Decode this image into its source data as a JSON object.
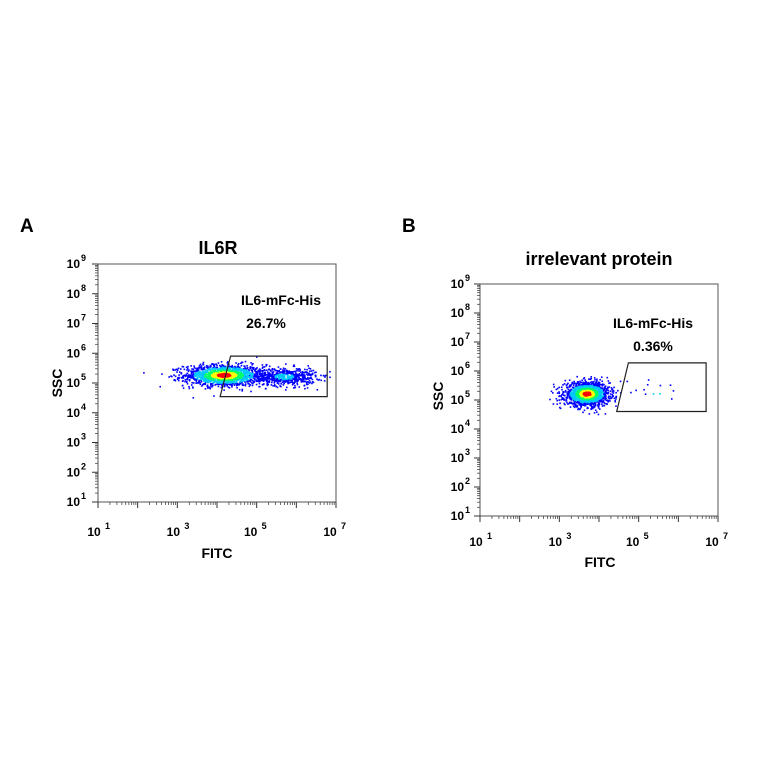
{
  "figure": {
    "panels": [
      "A",
      "B"
    ]
  },
  "chart_data": [
    {
      "type": "scatter",
      "panel": "A",
      "title": "IL6R",
      "xlabel": "FITC",
      "ylabel": "SSC",
      "x_scale": "log",
      "y_scale": "log",
      "xlim": [
        10,
        10000000
      ],
      "ylim": [
        10,
        1000000000
      ],
      "x_ticks": [
        {
          "base": "10",
          "exp": "1",
          "value": 10
        },
        {
          "base": "10",
          "exp": "3",
          "value": 1000
        },
        {
          "base": "10",
          "exp": "5",
          "value": 100000
        },
        {
          "base": "10",
          "exp": "7",
          "value": 10000000
        }
      ],
      "y_ticks": [
        {
          "base": "10",
          "exp": "1",
          "value": 10
        },
        {
          "base": "10",
          "exp": "2",
          "value": 100
        },
        {
          "base": "10",
          "exp": "3",
          "value": 1000
        },
        {
          "base": "10",
          "exp": "4",
          "value": 10000
        },
        {
          "base": "10",
          "exp": "5",
          "value": 100000
        },
        {
          "base": "10",
          "exp": "6",
          "value": 1000000
        },
        {
          "base": "10",
          "exp": "7",
          "value": 10000000
        },
        {
          "base": "10",
          "exp": "8",
          "value": 100000000
        },
        {
          "base": "10",
          "exp": "9",
          "value": 1000000000
        }
      ],
      "gate": {
        "name": "IL6-mFc-His",
        "percent": "26.7%",
        "polygon": [
          [
            22000,
            800000
          ],
          [
            6000000,
            800000
          ],
          [
            6000000,
            35000
          ],
          [
            12000,
            35000
          ]
        ]
      },
      "populations": [
        {
          "center": [
            15000,
            180000
          ],
          "spread": [
            0.5,
            0.18
          ],
          "count": 1400
        },
        {
          "center": [
            500000,
            160000
          ],
          "spread": [
            0.4,
            0.15
          ],
          "count": 600
        }
      ],
      "grid": false,
      "colormap": [
        "#0000ff",
        "#00c8ff",
        "#00ff66",
        "#ffff00",
        "#ff0000"
      ]
    },
    {
      "type": "scatter",
      "panel": "B",
      "title": "irrelevant protein",
      "xlabel": "FITC",
      "ylabel": "SSC",
      "x_scale": "log",
      "y_scale": "log",
      "xlim": [
        10,
        10000000
      ],
      "ylim": [
        10,
        1000000000
      ],
      "x_ticks": [
        {
          "base": "10",
          "exp": "1",
          "value": 10
        },
        {
          "base": "10",
          "exp": "3",
          "value": 1000
        },
        {
          "base": "10",
          "exp": "5",
          "value": 100000
        },
        {
          "base": "10",
          "exp": "7",
          "value": 10000000
        }
      ],
      "y_ticks": [
        {
          "base": "10",
          "exp": "1",
          "value": 10
        },
        {
          "base": "10",
          "exp": "2",
          "value": 100
        },
        {
          "base": "10",
          "exp": "3",
          "value": 1000
        },
        {
          "base": "10",
          "exp": "4",
          "value": 10000
        },
        {
          "base": "10",
          "exp": "5",
          "value": 100000
        },
        {
          "base": "10",
          "exp": "6",
          "value": 1000000
        },
        {
          "base": "10",
          "exp": "7",
          "value": 10000000
        },
        {
          "base": "10",
          "exp": "8",
          "value": 100000000
        },
        {
          "base": "10",
          "exp": "9",
          "value": 1000000000
        }
      ],
      "gate": {
        "name": "IL6-mFc-His",
        "percent": "0.36%",
        "polygon": [
          [
            55000,
            1900000
          ],
          [
            5000000,
            1900000
          ],
          [
            5000000,
            40000
          ],
          [
            28000,
            40000
          ]
        ]
      },
      "populations": [
        {
          "center": [
            5000,
            160000
          ],
          "spread": [
            0.28,
            0.2
          ],
          "count": 1500
        },
        {
          "center": [
            300000,
            200000
          ],
          "spread": [
            0.5,
            0.25
          ],
          "count": 15
        }
      ],
      "grid": false,
      "colormap": [
        "#0000ff",
        "#00c8ff",
        "#00ff66",
        "#ffff00",
        "#ff0000"
      ]
    }
  ]
}
